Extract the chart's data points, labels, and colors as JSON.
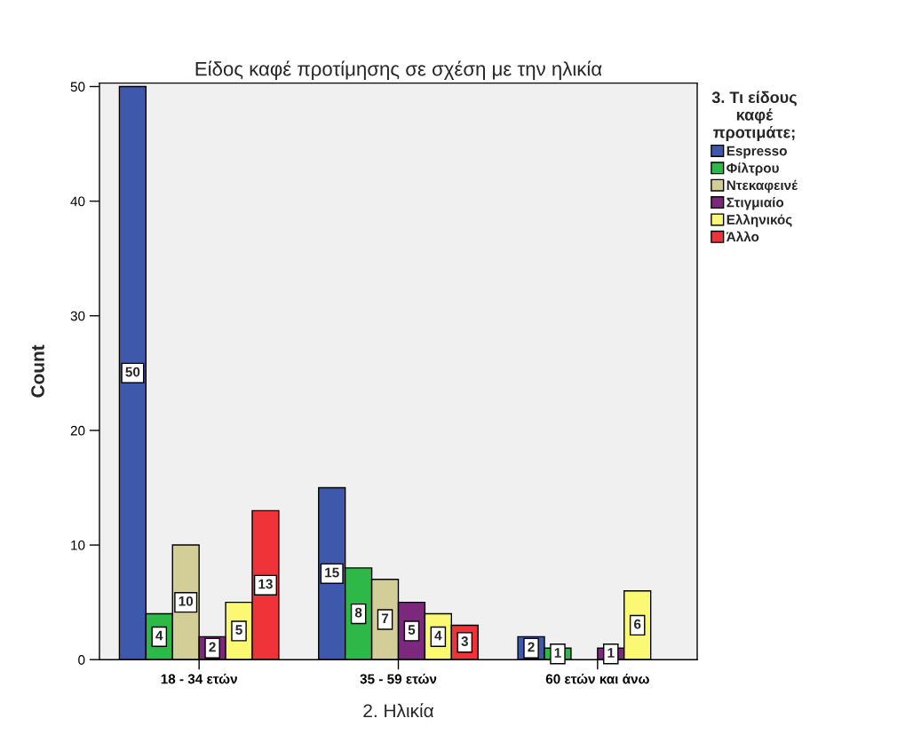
{
  "chart_data": {
    "type": "bar",
    "title": "Είδος καφέ προτίμησης σε σχέση με την ηλικία",
    "xlabel": "2. Ηλικία",
    "ylabel": "Count",
    "legend_title": "3. Τι είδους\nκαφέ\nπροτιμάτε;",
    "categories": [
      "18 - 34 ετών",
      "35 - 59 ετών",
      "60 ετών και άνω"
    ],
    "series": [
      {
        "name": "Espresso",
        "color": "#3e58ac",
        "values": [
          50,
          15,
          2
        ]
      },
      {
        "name": "Φίλτρου",
        "color": "#2eb848",
        "values": [
          4,
          8,
          1
        ]
      },
      {
        "name": "Ντεκαφεινέ",
        "color": "#d3ce97",
        "values": [
          10,
          7,
          null
        ]
      },
      {
        "name": "Στιγμιαίο",
        "color": "#7c287d",
        "values": [
          2,
          5,
          1
        ]
      },
      {
        "name": "Ελληνικός",
        "color": "#fbf873",
        "values": [
          5,
          4,
          6
        ]
      },
      {
        "name": "Άλλο",
        "color": "#ef3338",
        "values": [
          13,
          3,
          null
        ]
      }
    ],
    "ylim": [
      0,
      50.3
    ],
    "yticks": [
      0,
      10,
      20,
      30,
      40,
      50
    ],
    "grid": false,
    "legend": "top right",
    "data_labels": true
  }
}
